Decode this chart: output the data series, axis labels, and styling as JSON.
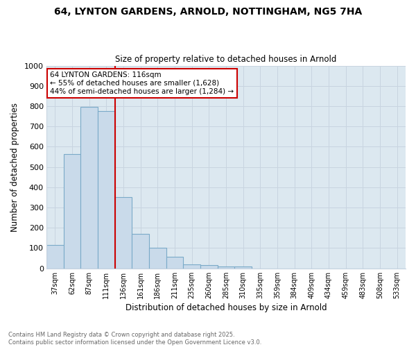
{
  "title_line1": "64, LYNTON GARDENS, ARNOLD, NOTTINGHAM, NG5 7HA",
  "title_line2": "Size of property relative to detached houses in Arnold",
  "xlabel": "Distribution of detached houses by size in Arnold",
  "ylabel": "Number of detached properties",
  "categories": [
    "37sqm",
    "62sqm",
    "87sqm",
    "111sqm",
    "136sqm",
    "161sqm",
    "186sqm",
    "211sqm",
    "235sqm",
    "260sqm",
    "285sqm",
    "310sqm",
    "335sqm",
    "359sqm",
    "384sqm",
    "409sqm",
    "434sqm",
    "459sqm",
    "483sqm",
    "508sqm",
    "533sqm"
  ],
  "values": [
    115,
    565,
    795,
    775,
    350,
    168,
    100,
    55,
    20,
    15,
    10,
    8,
    0,
    0,
    0,
    0,
    0,
    0,
    0,
    0,
    0
  ],
  "bar_color": "#c9daea",
  "bar_edge_color": "#7aaac8",
  "red_line_x": 3.5,
  "annotation_text": "64 LYNTON GARDENS: 116sqm\n← 55% of detached houses are smaller (1,628)\n44% of semi-detached houses are larger (1,284) →",
  "annotation_box_color": "#ffffff",
  "annotation_box_edge": "#cc0000",
  "red_line_color": "#cc0000",
  "ylim": [
    0,
    1000
  ],
  "yticks": [
    0,
    100,
    200,
    300,
    400,
    500,
    600,
    700,
    800,
    900,
    1000
  ],
  "grid_color": "#c8d4e0",
  "bg_color": "#ffffff",
  "plot_bg_color": "#dce8f0",
  "footnote": "Contains HM Land Registry data © Crown copyright and database right 2025.\nContains public sector information licensed under the Open Government Licence v3.0."
}
